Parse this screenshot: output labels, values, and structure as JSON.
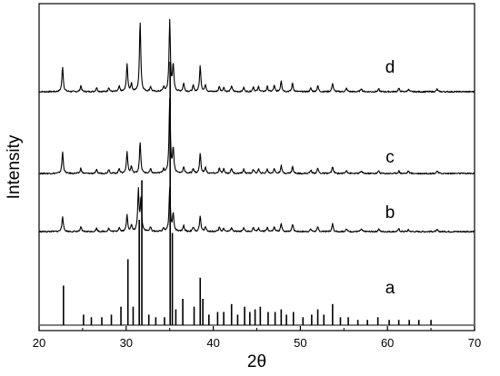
{
  "chart_data": {
    "type": "line",
    "title": "",
    "xlabel": "2θ",
    "ylabel": "Intensity",
    "xlim": [
      20,
      70
    ],
    "x_ticks": [
      20,
      30,
      40,
      50,
      60,
      70
    ],
    "x_tick_labels": [
      "20",
      "30",
      "40",
      "50",
      "60",
      "70"
    ],
    "y_ticks_shown": false,
    "grid": false,
    "legend": "none",
    "line_color": "#000000",
    "series": [
      {
        "name": "d",
        "style": "profile",
        "baseline": 100,
        "peaks": [
          [
            22.7,
            29
          ],
          [
            24.8,
            7
          ],
          [
            26.6,
            5
          ],
          [
            28.0,
            5
          ],
          [
            29.2,
            6
          ],
          [
            30.1,
            32
          ],
          [
            30.6,
            9
          ],
          [
            31.6,
            82
          ],
          [
            32.8,
            6
          ],
          [
            34.3,
            5
          ],
          [
            35.0,
            82
          ],
          [
            35.4,
            30
          ],
          [
            36.6,
            10
          ],
          [
            37.7,
            7
          ],
          [
            38.5,
            30
          ],
          [
            39.1,
            8
          ],
          [
            40.7,
            6
          ],
          [
            41.2,
            5
          ],
          [
            42.1,
            7
          ],
          [
            43.5,
            5
          ],
          [
            44.6,
            6
          ],
          [
            45.2,
            6
          ],
          [
            46.2,
            6
          ],
          [
            47.0,
            7
          ],
          [
            47.8,
            13
          ],
          [
            49.1,
            10
          ],
          [
            51.2,
            4
          ],
          [
            52.0,
            7
          ],
          [
            53.7,
            10
          ],
          [
            55.3,
            4
          ],
          [
            57.0,
            4
          ],
          [
            59.0,
            3
          ],
          [
            61.3,
            4
          ],
          [
            62.4,
            3
          ],
          [
            65.7,
            3
          ]
        ]
      },
      {
        "name": "c",
        "style": "profile",
        "baseline": 100,
        "peaks": [
          [
            22.7,
            25
          ],
          [
            24.8,
            6
          ],
          [
            26.6,
            4
          ],
          [
            28.0,
            5
          ],
          [
            29.2,
            6
          ],
          [
            30.1,
            25
          ],
          [
            30.6,
            8
          ],
          [
            31.6,
            36
          ],
          [
            32.8,
            5
          ],
          [
            34.3,
            5
          ],
          [
            35.0,
            86
          ],
          [
            35.4,
            28
          ],
          [
            36.6,
            8
          ],
          [
            37.7,
            6
          ],
          [
            38.5,
            23
          ],
          [
            39.1,
            7
          ],
          [
            40.7,
            6
          ],
          [
            41.2,
            5
          ],
          [
            42.1,
            6
          ],
          [
            43.5,
            5
          ],
          [
            44.6,
            5
          ],
          [
            45.2,
            5
          ],
          [
            46.2,
            5
          ],
          [
            47.0,
            6
          ],
          [
            47.8,
            9
          ],
          [
            49.1,
            8
          ],
          [
            51.2,
            4
          ],
          [
            52.0,
            6
          ],
          [
            53.7,
            8
          ],
          [
            55.3,
            4
          ],
          [
            57.0,
            3
          ],
          [
            59.0,
            3
          ],
          [
            61.3,
            3
          ],
          [
            62.4,
            3
          ],
          [
            65.7,
            3
          ]
        ]
      },
      {
        "name": "b",
        "style": "profile",
        "baseline": 100,
        "peaks": [
          [
            22.7,
            18
          ],
          [
            24.8,
            5
          ],
          [
            26.6,
            4
          ],
          [
            28.0,
            4
          ],
          [
            29.2,
            5
          ],
          [
            30.1,
            19
          ],
          [
            30.6,
            7
          ],
          [
            31.4,
            47
          ],
          [
            31.7,
            38
          ],
          [
            32.8,
            5
          ],
          [
            34.3,
            4
          ],
          [
            35.0,
            50
          ],
          [
            35.4,
            20
          ],
          [
            36.6,
            7
          ],
          [
            37.7,
            5
          ],
          [
            38.5,
            18
          ],
          [
            39.1,
            6
          ],
          [
            40.7,
            5
          ],
          [
            41.2,
            4
          ],
          [
            42.1,
            5
          ],
          [
            43.5,
            4
          ],
          [
            44.6,
            5
          ],
          [
            45.2,
            4
          ],
          [
            46.2,
            5
          ],
          [
            47.0,
            5
          ],
          [
            47.8,
            9
          ],
          [
            49.1,
            9
          ],
          [
            51.2,
            3
          ],
          [
            52.0,
            5
          ],
          [
            53.7,
            9
          ],
          [
            55.3,
            3
          ],
          [
            57.0,
            3
          ],
          [
            59.0,
            3
          ],
          [
            61.3,
            3
          ],
          [
            62.4,
            2
          ],
          [
            65.7,
            2
          ]
        ]
      },
      {
        "name": "a",
        "style": "stick",
        "baseline": 100,
        "sticks": [
          [
            22.8,
            15
          ],
          [
            25.1,
            4
          ],
          [
            26.0,
            3
          ],
          [
            27.2,
            3
          ],
          [
            28.3,
            4
          ],
          [
            29.4,
            7
          ],
          [
            30.2,
            25
          ],
          [
            30.8,
            7
          ],
          [
            31.5,
            40
          ],
          [
            31.8,
            55
          ],
          [
            32.6,
            4
          ],
          [
            33.4,
            3
          ],
          [
            34.4,
            3
          ],
          [
            35.05,
            100
          ],
          [
            35.3,
            35
          ],
          [
            35.7,
            6
          ],
          [
            36.5,
            10
          ],
          [
            37.8,
            7
          ],
          [
            38.5,
            18
          ],
          [
            38.8,
            10
          ],
          [
            39.5,
            4
          ],
          [
            40.5,
            5
          ],
          [
            41.2,
            5
          ],
          [
            42.1,
            8
          ],
          [
            42.8,
            4
          ],
          [
            43.6,
            7
          ],
          [
            44.2,
            5
          ],
          [
            44.8,
            6
          ],
          [
            45.4,
            7
          ],
          [
            46.3,
            5
          ],
          [
            47.1,
            5
          ],
          [
            47.8,
            6
          ],
          [
            48.4,
            4
          ],
          [
            49.2,
            5
          ],
          [
            50.3,
            3
          ],
          [
            51.3,
            4
          ],
          [
            52.0,
            6
          ],
          [
            52.7,
            4
          ],
          [
            53.7,
            8
          ],
          [
            54.6,
            3
          ],
          [
            55.5,
            3
          ],
          [
            56.6,
            2
          ],
          [
            57.7,
            2
          ],
          [
            58.9,
            3
          ],
          [
            60.2,
            2
          ],
          [
            61.3,
            2
          ],
          [
            62.5,
            2
          ],
          [
            63.6,
            2
          ],
          [
            65.0,
            2
          ]
        ]
      }
    ]
  }
}
